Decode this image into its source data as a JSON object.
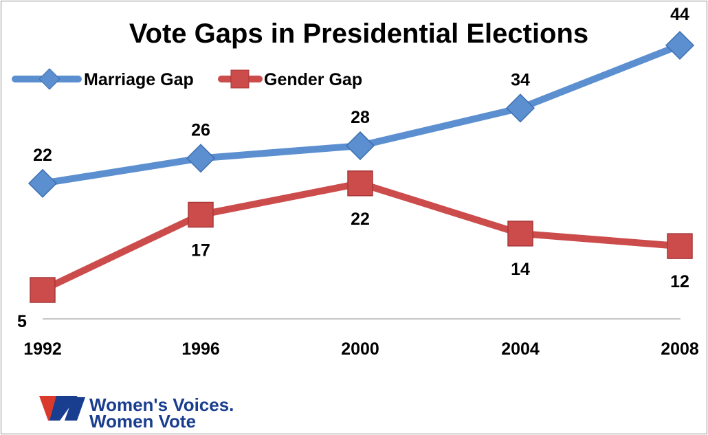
{
  "chart_data": {
    "type": "line",
    "title": "Vote Gaps in Presidential Elections",
    "categories": [
      "1992",
      "1996",
      "2000",
      "2004",
      "2008"
    ],
    "series": [
      {
        "name": "Marriage Gap",
        "values": [
          22,
          26,
          28,
          34,
          44
        ],
        "color": "#5b8fd0",
        "marker": "diamond"
      },
      {
        "name": "Gender Gap",
        "values": [
          5,
          17,
          22,
          14,
          12
        ],
        "color": "#cc4c4c",
        "marker": "square"
      }
    ],
    "xlabel": "",
    "ylabel": "",
    "ylim": [
      5,
      44
    ],
    "grid": false,
    "legend_position": "top-left"
  },
  "logo": {
    "line1": "Women's Voices.",
    "line2": "Women Vote",
    "colors": {
      "red": "#d93a2b",
      "blue": "#1a3e8f"
    }
  }
}
